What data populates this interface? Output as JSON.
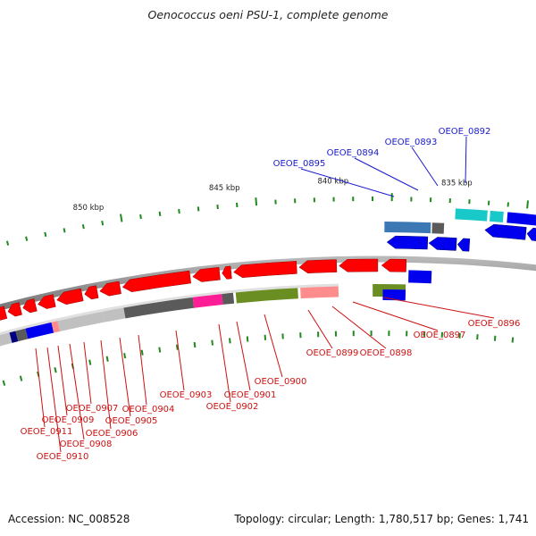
{
  "title": "Oenococcus oeni PSU-1, complete genome",
  "footer": {
    "accession": "Accession: NC_008528",
    "summary": "Topology: circular; Length: 1,780,517 bp; Genes: 1,741"
  },
  "scale_labels": [
    "835 kbp",
    "840 kbp",
    "845 kbp",
    "850 kbp"
  ],
  "genes_upper": [
    "OEOE_0892",
    "OEOE_0893",
    "OEOE_0894",
    "OEOE_0895"
  ],
  "genes_lower": [
    "OEOE_0896",
    "OEOE_0897",
    "OEOE_0898",
    "OEOE_0899",
    "OEOE_0900",
    "OEOE_0901",
    "OEOE_0902",
    "OEOE_0903",
    "OEOE_0904",
    "OEOE_0905",
    "OEOE_0906",
    "OEOE_0907",
    "OEOE_0908",
    "OEOE_0909",
    "OEOE_0910",
    "OEOE_0911"
  ],
  "colors": {
    "reverse_cds": "#ff0000",
    "forward_cds": "#0000ee",
    "backbone": "#8c8c8c",
    "tick": "#1f8a1f",
    "label_upper": "#1a1acc",
    "label_lower": "#cc1111",
    "cog_cyan": "#19c8c8",
    "cog_steel": "#3c78b4",
    "cog_olive": "#6b8e23",
    "cog_pink": "#ff8c8c",
    "cog_magenta": "#ff1e96",
    "cog_gray": "#5a5a5a",
    "cog_light": "#c0c0c0",
    "cog_navy": "#000080"
  }
}
